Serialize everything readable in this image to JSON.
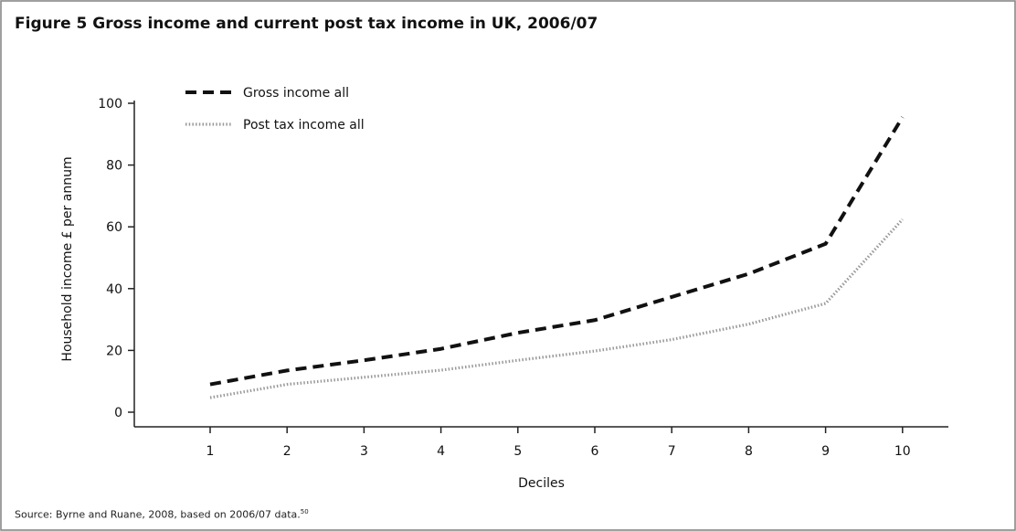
{
  "title": "Figure 5 Gross income and current post tax income in UK, 2006/07",
  "source": "Source: Byrne and Ruane, 2008, based on 2006/07 data.",
  "source_ref": "50",
  "colors": {
    "frame": "#808080",
    "axis": "#222222",
    "gross": "#111111",
    "post_tax": "#999999"
  },
  "chart_data": {
    "type": "line",
    "xlabel": "Deciles",
    "ylabel": "Household income £ per annum",
    "categories": [
      "1",
      "2",
      "3",
      "4",
      "5",
      "6",
      "7",
      "8",
      "9",
      "10"
    ],
    "yticks": [
      0,
      20,
      40,
      60,
      80,
      100
    ],
    "ylim": [
      -5,
      102
    ],
    "grid": false,
    "legend_position": "top-left",
    "series": [
      {
        "name": "Gross income all",
        "style": "dashed",
        "values": [
          9,
          13.5,
          16.8,
          20.5,
          25.7,
          29.8,
          37.3,
          44.8,
          54.5,
          95.5
        ]
      },
      {
        "name": "Post tax income all",
        "style": "dotted",
        "values": [
          4.7,
          9,
          11.3,
          13.6,
          16.8,
          19.8,
          23.5,
          28.5,
          35.2,
          62.4
        ]
      }
    ]
  }
}
